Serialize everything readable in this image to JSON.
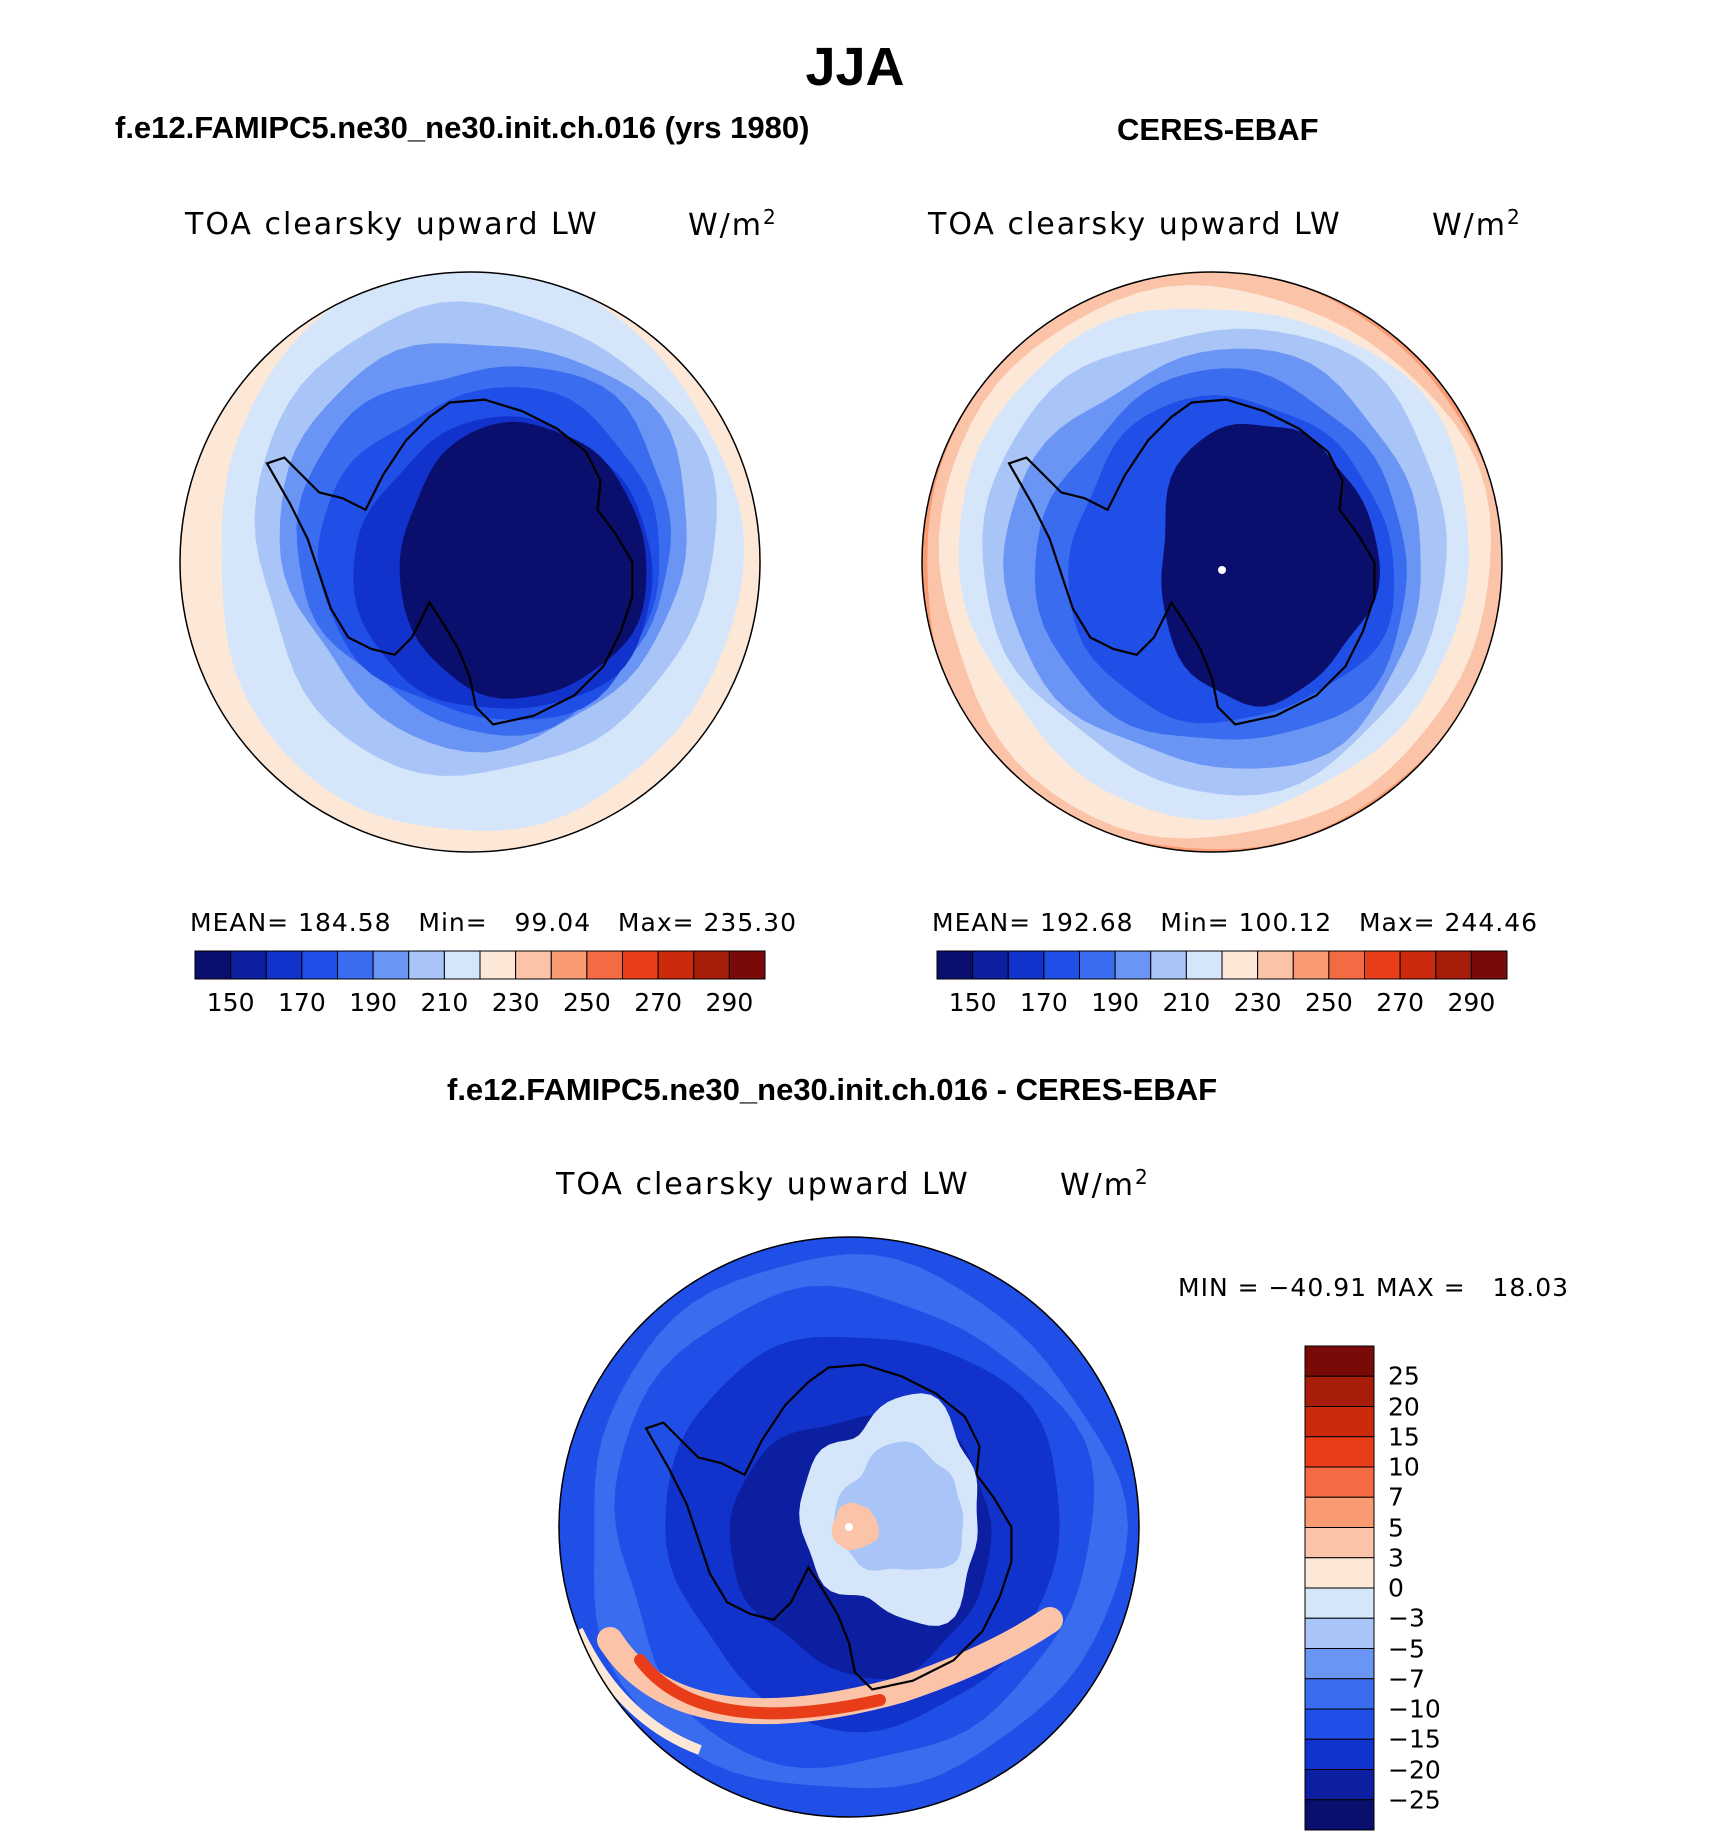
{
  "figure": {
    "season": "JJA",
    "panel_left_title": "f.e12.FAMIPC5.ne30_ne30.init.ch.016 (yrs 1980)",
    "panel_right_title": "CERES-EBAF",
    "panel_diff_title": "f.e12.FAMIPC5.ne30_ne30.init.ch.016 - CERES-EBAF",
    "variable": "TOA clearsky upward LW",
    "units_base": "W/m",
    "units_exp": "2"
  },
  "colors": {
    "abs_levels": [
      "#0a0f6e",
      "#0c1fa0",
      "#1232cc",
      "#1f4fe6",
      "#3a6cef",
      "#6b95f5",
      "#a9c4f7",
      "#d5e6fa",
      "#fde8d8",
      "#fbc4a8",
      "#f99a72",
      "#f46a42",
      "#e93d1a",
      "#cc2a0d",
      "#a81d0a",
      "#7a0a08"
    ],
    "diff_levels": [
      "#0a0f6e",
      "#0c1fa0",
      "#1232cc",
      "#1f4fe6",
      "#3a6cef",
      "#6b95f5",
      "#a9c4f7",
      "#d5e6fa",
      "#fde8d8",
      "#fbc4a8",
      "#f99a72",
      "#f46a42",
      "#e93d1a",
      "#cc2a0d",
      "#a81d0a",
      "#7a0a08"
    ]
  },
  "chart_data": [
    {
      "type": "heatmap",
      "projection": "south-polar-stereographic",
      "title": "f.e12.FAMIPC5.ne30_ne30.init.ch.016 (yrs 1980)",
      "stats_text": "MEAN= 184.58   Min=   99.04   Max= 235.30",
      "mean": 184.58,
      "min": 99.04,
      "max": 235.3,
      "colorbar_ticks": [
        "150",
        "170",
        "190",
        "210",
        "230",
        "250",
        "270",
        "290"
      ],
      "contour_bands": [
        {
          "value": 235,
          "level": 8
        },
        {
          "value": 215,
          "level": 7
        },
        {
          "value": 200,
          "level": 6
        },
        {
          "value": 185,
          "level": 5
        },
        {
          "value": 170,
          "level": 4
        },
        {
          "value": 155,
          "level": 3
        },
        {
          "value": 140,
          "level": 2
        },
        {
          "value": 110,
          "level": 0
        }
      ]
    },
    {
      "type": "heatmap",
      "projection": "south-polar-stereographic",
      "title": "CERES-EBAF",
      "stats_text": "MEAN= 192.68   Min= 100.12   Max= 244.46",
      "mean": 192.68,
      "min": 100.12,
      "max": 244.46,
      "colorbar_ticks": [
        "150",
        "170",
        "190",
        "210",
        "230",
        "250",
        "270",
        "290"
      ],
      "contour_bands": [
        {
          "value": 244,
          "level": 10
        },
        {
          "value": 235,
          "level": 9
        },
        {
          "value": 225,
          "level": 8
        },
        {
          "value": 210,
          "level": 7
        },
        {
          "value": 200,
          "level": 6
        },
        {
          "value": 185,
          "level": 5
        },
        {
          "value": 170,
          "level": 4
        },
        {
          "value": 150,
          "level": 3
        },
        {
          "value": 110,
          "level": 0
        }
      ]
    },
    {
      "type": "heatmap",
      "projection": "south-polar-stereographic",
      "title": "f.e12.FAMIPC5.ne30_ne30.init.ch.016 - CERES-EBAF",
      "stats_text": "MIN = −40.91 MAX =   18.03",
      "min": -40.91,
      "max": 18.03,
      "colorbar_ticks": [
        "25",
        "20",
        "15",
        "10",
        "7",
        "5",
        "3",
        "0",
        "−3",
        "−5",
        "−7",
        "−10",
        "−15",
        "−20",
        "−25"
      ]
    }
  ]
}
